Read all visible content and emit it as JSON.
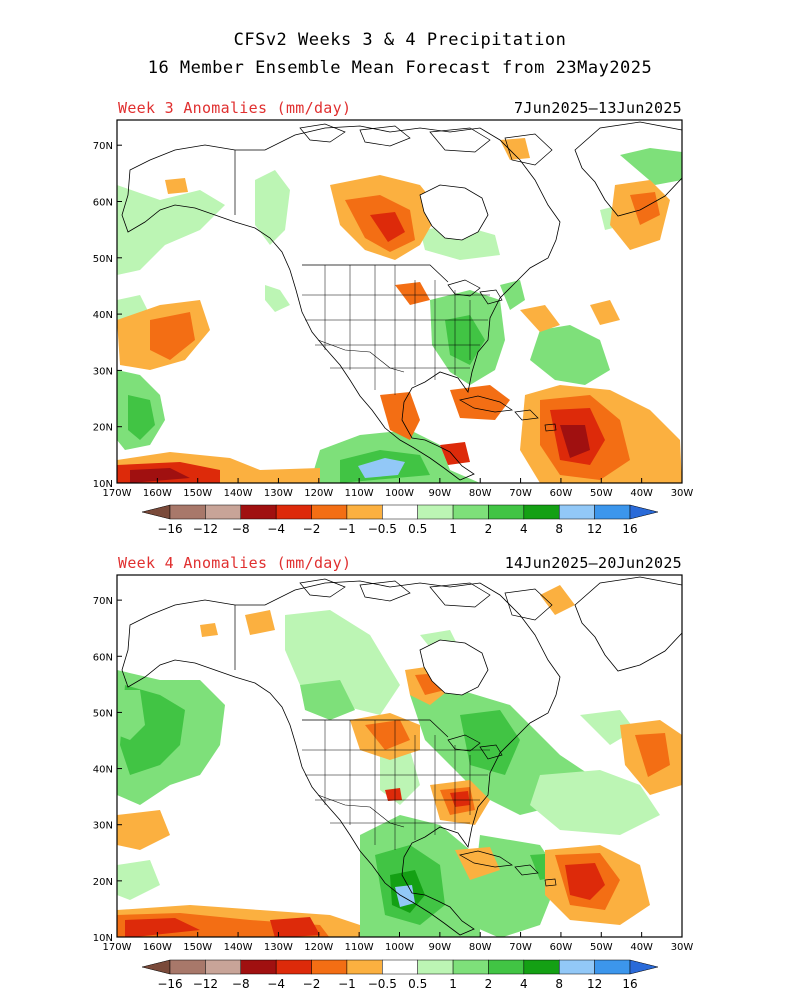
{
  "title_line1": "CFSv2 Weeks 3 & 4 Precipitation",
  "title_line2": "16 Member Ensemble Mean Forecast from 23May2025",
  "panels": [
    {
      "label": "Week 3 Anomalies (mm/day)",
      "dates": "7Jun2025–13Jun2025"
    },
    {
      "label": "Week 4 Anomalies (mm/day)",
      "dates": "14Jun2025–20Jun2025"
    }
  ],
  "lat_labels": [
    "70N",
    "60N",
    "50N",
    "40N",
    "30N",
    "20N",
    "10N"
  ],
  "lon_labels": [
    "170W",
    "160W",
    "150W",
    "140W",
    "130W",
    "120W",
    "110W",
    "100W",
    "90W",
    "80W",
    "70W",
    "60W",
    "50W",
    "40W",
    "30W"
  ],
  "colorbar": {
    "labels": [
      "−16",
      "−12",
      "−8",
      "−4",
      "−2",
      "−1",
      "−0.5",
      "0.5",
      "1",
      "2",
      "4",
      "8",
      "12",
      "16"
    ],
    "colors": [
      "#7a4a3a",
      "#a8786a",
      "#c8a498",
      "#a01010",
      "#dd2a0a",
      "#f36e14",
      "#fbb040",
      "#ffffff",
      "#bcf5b4",
      "#7ee07a",
      "#41c444",
      "#14a014",
      "#92c8f7",
      "#3c96ec",
      "#2a6ad8"
    ]
  }
}
